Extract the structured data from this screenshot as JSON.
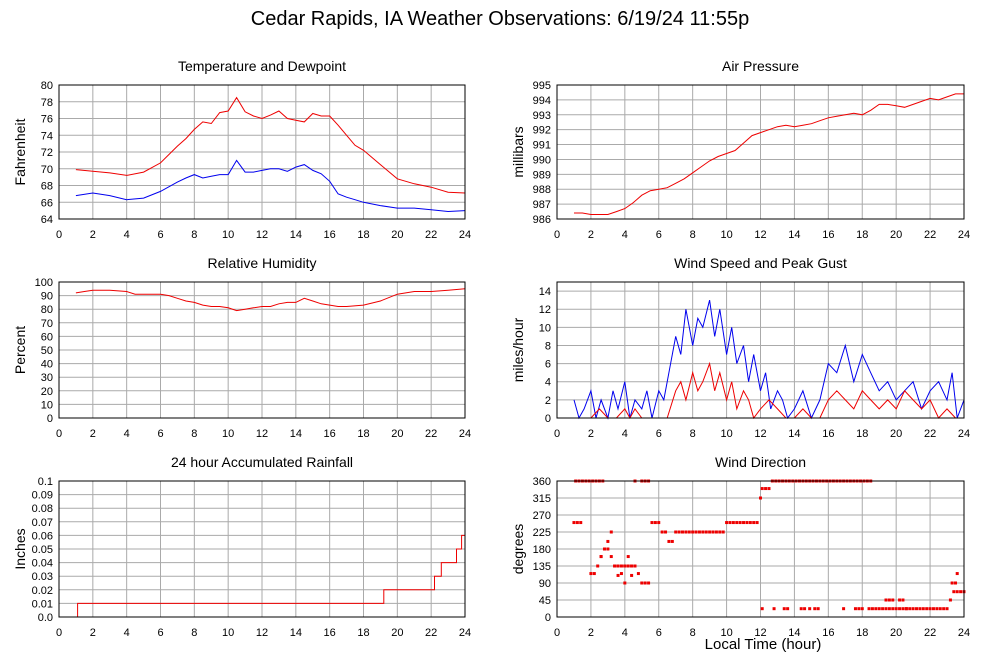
{
  "page": {
    "title": "Cedar Rapids, IA Weather Observations: 6/19/24 11:55p",
    "xlabel": "Local Time (hour)"
  },
  "colors": {
    "primary": "#ee0000",
    "secondary": "#0000ee",
    "grid": "#aaaaaa"
  },
  "chart_data": [
    {
      "id": "temperature",
      "type": "line",
      "title": "Temperature and Dewpoint",
      "ylabel": "Fahrenheit",
      "xlim": [
        0,
        24
      ],
      "ylim": [
        64,
        80
      ],
      "xticks": [
        0,
        2,
        4,
        6,
        8,
        10,
        12,
        14,
        16,
        18,
        20,
        22,
        24
      ],
      "yticks": [
        64,
        66,
        68,
        70,
        72,
        74,
        76,
        78,
        80
      ],
      "grid": true,
      "series": [
        {
          "color": "#ee0000",
          "x": [
            1,
            2,
            3,
            4,
            5,
            6,
            7,
            7.5,
            8,
            8.5,
            9,
            9.5,
            10,
            10.5,
            11,
            11.5,
            12,
            12.5,
            13,
            13.5,
            14,
            14.5,
            15,
            15.5,
            16,
            16.5,
            17,
            17.5,
            18,
            19,
            20,
            21,
            22,
            23,
            24
          ],
          "y": [
            69.9,
            69.7,
            69.5,
            69.2,
            69.6,
            70.7,
            72.7,
            73.6,
            74.7,
            75.6,
            75.4,
            76.7,
            76.9,
            78.5,
            76.8,
            76.3,
            76,
            76.4,
            76.9,
            76,
            75.8,
            75.6,
            76.6,
            76.3,
            76.3,
            75.2,
            74,
            72.8,
            72.2,
            70.5,
            68.8,
            68.2,
            67.8,
            67.2,
            67.1
          ]
        },
        {
          "color": "#0000ee",
          "x": [
            1,
            2,
            3,
            4,
            5,
            6,
            7,
            7.5,
            8,
            8.5,
            9,
            9.5,
            10,
            10.5,
            11,
            11.5,
            12,
            12.5,
            13,
            13.5,
            14,
            14.5,
            15,
            15.5,
            16,
            16.5,
            17,
            17.5,
            18,
            19,
            20,
            21,
            22,
            23,
            24
          ],
          "y": [
            66.8,
            67.1,
            66.8,
            66.3,
            66.5,
            67.3,
            68.4,
            68.9,
            69.3,
            68.9,
            69.1,
            69.3,
            69.3,
            71,
            69.6,
            69.6,
            69.8,
            70,
            70,
            69.7,
            70.2,
            70.5,
            69.8,
            69.4,
            68.5,
            67,
            66.6,
            66.3,
            66,
            65.6,
            65.3,
            65.3,
            65.1,
            64.9,
            65
          ]
        }
      ]
    },
    {
      "id": "pressure",
      "type": "line",
      "title": "Air Pressure",
      "ylabel": "millibars",
      "xlim": [
        0,
        24
      ],
      "ylim": [
        986,
        995
      ],
      "xticks": [
        0,
        2,
        4,
        6,
        8,
        10,
        12,
        14,
        16,
        18,
        20,
        22,
        24
      ],
      "yticks": [
        986,
        987,
        988,
        989,
        990,
        991,
        992,
        993,
        994,
        995
      ],
      "grid": true,
      "series": [
        {
          "color": "#ee0000",
          "x": [
            1,
            1.5,
            2,
            2.5,
            3,
            3.5,
            4,
            4.5,
            5,
            5.5,
            6,
            6.5,
            7,
            7.5,
            8,
            8.5,
            9,
            9.5,
            10,
            10.5,
            11,
            11.5,
            12,
            12.5,
            13,
            13.5,
            14,
            14.5,
            15,
            15.5,
            16,
            16.5,
            17,
            17.5,
            18,
            18.5,
            19,
            19.5,
            20,
            20.5,
            21,
            21.5,
            22,
            22.5,
            23,
            23.5,
            24
          ],
          "y": [
            986.4,
            986.4,
            986.3,
            986.3,
            986.3,
            986.5,
            986.7,
            987.1,
            987.6,
            987.9,
            988.0,
            988.1,
            988.4,
            988.7,
            989.1,
            989.5,
            989.9,
            990.2,
            990.4,
            990.6,
            991.1,
            991.6,
            991.8,
            992.0,
            992.2,
            992.3,
            992.2,
            992.3,
            992.4,
            992.6,
            992.8,
            992.9,
            993.0,
            993.1,
            993.0,
            993.3,
            993.7,
            993.7,
            993.6,
            993.5,
            993.7,
            993.9,
            994.1,
            994.0,
            994.2,
            994.4,
            994.4
          ]
        }
      ]
    },
    {
      "id": "humidity",
      "type": "line",
      "title": "Relative Humidity",
      "ylabel": "Percent",
      "xlim": [
        0,
        24
      ],
      "ylim": [
        0,
        100
      ],
      "xticks": [
        0,
        2,
        4,
        6,
        8,
        10,
        12,
        14,
        16,
        18,
        20,
        22,
        24
      ],
      "yticks": [
        0,
        10,
        20,
        30,
        40,
        50,
        60,
        70,
        80,
        90,
        100
      ],
      "grid": true,
      "series": [
        {
          "color": "#ee0000",
          "x": [
            1,
            1.5,
            2,
            3,
            4,
            4.5,
            5,
            6,
            6.5,
            7,
            7.5,
            8,
            8.5,
            9,
            9.5,
            10,
            10.5,
            11,
            11.5,
            12,
            12.5,
            13,
            13.5,
            14,
            14.5,
            15,
            15.5,
            16,
            16.5,
            17,
            18,
            19,
            20,
            21,
            22,
            23,
            24
          ],
          "y": [
            92,
            93,
            94,
            94,
            93,
            91,
            91,
            91,
            90,
            88,
            86,
            85,
            83,
            82,
            82,
            81,
            79,
            80,
            81,
            82,
            82,
            84,
            85,
            85,
            88,
            86,
            84,
            83,
            82,
            82,
            83,
            86,
            91,
            93,
            93,
            94,
            95
          ]
        }
      ]
    },
    {
      "id": "wind-speed",
      "type": "line",
      "title": "Wind Speed and Peak Gust",
      "ylabel": "miles/hour",
      "xlim": [
        0,
        24
      ],
      "ylim": [
        0,
        15
      ],
      "xticks": [
        0,
        2,
        4,
        6,
        8,
        10,
        12,
        14,
        16,
        18,
        20,
        22,
        24
      ],
      "yticks": [
        0,
        2,
        4,
        6,
        8,
        10,
        12,
        14
      ],
      "grid": true,
      "series": [
        {
          "color": "#0000ee",
          "x": [
            1,
            1.3,
            1.6,
            2,
            2.3,
            2.6,
            3,
            3.3,
            3.6,
            4,
            4.3,
            4.6,
            5,
            5.3,
            5.6,
            6,
            6.3,
            6.6,
            7,
            7.3,
            7.6,
            8,
            8.3,
            8.6,
            9,
            9.3,
            9.6,
            10,
            10.3,
            10.6,
            11,
            11.3,
            11.6,
            12,
            12.3,
            12.6,
            13,
            13.3,
            13.6,
            14,
            14.5,
            15,
            15.5,
            16,
            16.5,
            17,
            17.5,
            18,
            18.5,
            19,
            19.5,
            20,
            20.5,
            21,
            21.5,
            22,
            22.5,
            23,
            23.3,
            23.6,
            24
          ],
          "y": [
            2,
            0,
            1,
            3,
            0,
            2,
            0,
            3,
            1,
            4,
            0,
            2,
            1,
            3,
            0,
            3,
            2,
            5,
            9,
            7,
            12,
            8,
            11,
            10,
            13,
            9,
            12,
            7,
            10,
            6,
            8,
            4,
            7,
            3,
            5,
            1,
            3,
            2,
            0,
            1,
            3,
            0,
            2,
            6,
            5,
            8,
            4,
            7,
            5,
            3,
            4,
            2,
            3,
            4,
            1,
            3,
            4,
            2,
            5,
            0,
            2
          ]
        },
        {
          "color": "#ee0000",
          "x": [
            1,
            1.5,
            2,
            2.5,
            3,
            3.5,
            4,
            4.3,
            4.6,
            5,
            5.5,
            6,
            6.5,
            7,
            7.3,
            7.6,
            8,
            8.3,
            8.6,
            9,
            9.3,
            9.6,
            10,
            10.3,
            10.6,
            11,
            11.3,
            11.6,
            12,
            12.5,
            13,
            13.5,
            14,
            14.5,
            15,
            15.5,
            16,
            16.5,
            17,
            17.5,
            18,
            18.5,
            19,
            19.5,
            20,
            20.5,
            21,
            21.5,
            22,
            22.5,
            23,
            23.5,
            24
          ],
          "y": [
            0,
            0,
            0,
            1,
            0,
            0,
            1,
            0,
            1,
            0,
            0,
            0,
            0,
            3,
            4,
            2,
            5,
            3,
            4,
            6,
            3,
            5,
            2,
            4,
            1,
            3,
            2,
            0,
            1,
            2,
            1,
            0,
            0,
            1,
            0,
            0,
            2,
            3,
            2,
            1,
            3,
            2,
            1,
            2,
            1,
            3,
            2,
            1,
            2,
            0,
            1,
            0,
            0
          ]
        }
      ]
    },
    {
      "id": "rainfall",
      "type": "line",
      "title": "24 hour Accumulated Rainfall",
      "ylabel": "Inches",
      "xlim": [
        0,
        24
      ],
      "ylim": [
        0,
        0.1
      ],
      "xticks": [
        0,
        2,
        4,
        6,
        8,
        10,
        12,
        14,
        16,
        18,
        20,
        22,
        24
      ],
      "yticks": [
        "0.0",
        "0.01",
        "0.02",
        "0.03",
        "0.04",
        "0.05",
        "0.06",
        "0.07",
        "0.08",
        "0.09",
        "0.1"
      ],
      "grid": true,
      "series": [
        {
          "color": "#ee0000",
          "step": true,
          "x": [
            1.1,
            1.1,
            19.2,
            19.2,
            22.2,
            22.2,
            22.6,
            22.6,
            23.5,
            23.5,
            23.8,
            23.8,
            24
          ],
          "y": [
            0,
            0.01,
            0.01,
            0.02,
            0.02,
            0.03,
            0.03,
            0.04,
            0.04,
            0.05,
            0.05,
            0.06,
            0.06
          ]
        }
      ]
    },
    {
      "id": "wind-direction",
      "type": "scatter",
      "title": "Wind Direction",
      "ylabel": "degrees",
      "xlim": [
        0,
        24
      ],
      "ylim": [
        0,
        360
      ],
      "xticks": [
        0,
        2,
        4,
        6,
        8,
        10,
        12,
        14,
        16,
        18,
        20,
        22,
        24
      ],
      "yticks": [
        0,
        45,
        90,
        135,
        180,
        225,
        270,
        315,
        360
      ],
      "grid": true,
      "series": [
        {
          "color": "#ee0000",
          "x": [
            1.0,
            1.2,
            1.4,
            1.1,
            1.3,
            1.5,
            1.7,
            1.9,
            2.1,
            2.3,
            2.5,
            2.7,
            2.0,
            2.2,
            2.4,
            2.6,
            2.8,
            3.0,
            3.2,
            3.4,
            3.6,
            3.8,
            4.0,
            4.2,
            4.4,
            4.6,
            4.8,
            5.0,
            5.2,
            5.4,
            2.6,
            2.8,
            3.0,
            3.2,
            3.4,
            3.6,
            3.8,
            4.0,
            4.2,
            4.4,
            3.6,
            4.0,
            4.4,
            4.6,
            5.0,
            5.2,
            5.4,
            5.6,
            5.8,
            6.0,
            6.2,
            6.4,
            6.6,
            6.8,
            7.0,
            7.2,
            7.4,
            7.6,
            7.8,
            8.0,
            8.2,
            8.4,
            8.6,
            8.8,
            9.0,
            9.2,
            9.4,
            9.6,
            9.8,
            10.0,
            10.2,
            10.4,
            10.6,
            10.8,
            11.0,
            11.2,
            11.4,
            11.6,
            11.8,
            12.0,
            12.1,
            12.3,
            12.5,
            12.7,
            12.9,
            13.1,
            13.3,
            13.5,
            13.7,
            13.9,
            14.1,
            14.3,
            14.5,
            14.7,
            14.9,
            15.1,
            15.3,
            15.5,
            15.7,
            15.9,
            16.1,
            16.3,
            16.5,
            16.7,
            16.9,
            17.1,
            17.3,
            17.5,
            17.7,
            17.9,
            18.1,
            18.3,
            18.5,
            12.1,
            12.8,
            13.4,
            13.6,
            14.4,
            14.6,
            14.9,
            15.2,
            15.4,
            16.9,
            17.6,
            17.8,
            18.0,
            18.4,
            18.6,
            18.8,
            19.0,
            19.2,
            19.4,
            19.6,
            19.8,
            20.0,
            20.2,
            20.4,
            20.6,
            20.8,
            21.0,
            21.2,
            21.4,
            21.6,
            21.8,
            22.0,
            22.2,
            22.4,
            22.6,
            22.8,
            23.0,
            19.4,
            19.6,
            19.8,
            20.2,
            20.4,
            20.6,
            23.2,
            23.4,
            23.6,
            23.8,
            24.0,
            23.3,
            23.5,
            23.6
          ],
          "y": [
            250,
            250,
            250,
            360,
            360,
            360,
            360,
            360,
            360,
            360,
            360,
            360,
            115,
            115,
            135,
            160,
            180,
            200,
            225,
            135,
            135,
            135,
            135,
            135,
            135,
            135,
            115,
            90,
            90,
            90,
            160,
            180,
            180,
            160,
            135,
            135,
            115,
            135,
            160,
            135,
            110,
            90,
            110,
            360,
            360,
            360,
            360,
            250,
            250,
            250,
            225,
            225,
            200,
            200,
            225,
            225,
            225,
            225,
            225,
            225,
            225,
            225,
            225,
            225,
            225,
            225,
            225,
            225,
            225,
            250,
            250,
            250,
            250,
            250,
            250,
            250,
            250,
            250,
            250,
            315,
            340,
            340,
            340,
            360,
            360,
            360,
            360,
            360,
            360,
            360,
            360,
            360,
            360,
            360,
            360,
            360,
            360,
            360,
            360,
            360,
            360,
            360,
            360,
            360,
            360,
            360,
            360,
            360,
            360,
            360,
            360,
            360,
            360,
            22,
            22,
            22,
            22,
            22,
            22,
            22,
            22,
            22,
            22,
            22,
            22,
            22,
            22,
            22,
            22,
            22,
            22,
            22,
            22,
            22,
            22,
            22,
            22,
            22,
            22,
            22,
            22,
            22,
            22,
            22,
            22,
            22,
            22,
            22,
            22,
            22,
            45,
            45,
            45,
            45,
            45,
            22,
            45,
            67,
            67,
            67,
            67,
            90,
            90,
            115
          ]
        }
      ]
    }
  ]
}
